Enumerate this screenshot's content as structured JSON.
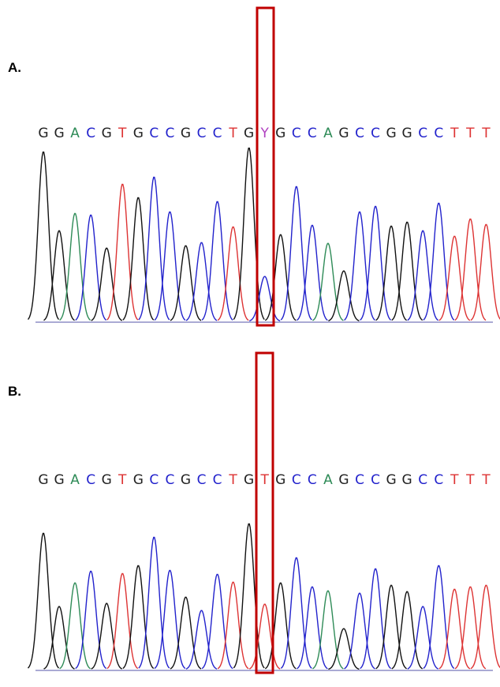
{
  "panels": [
    {
      "label": "A.",
      "sequence": [
        "G",
        "G",
        "A",
        "C",
        "G",
        "T",
        "G",
        "C",
        "C",
        "G",
        "C",
        "C",
        "T",
        "G",
        "Y",
        "G",
        "C",
        "C",
        "A",
        "G",
        "C",
        "C",
        "G",
        "G",
        "C",
        "C",
        "T",
        "T",
        "T"
      ],
      "peaks": [
        215,
        115,
        137,
        135,
        93,
        174,
        157,
        183,
        139,
        96,
        100,
        152,
        120,
        220,
        57,
        110,
        171,
        122,
        99,
        64,
        139,
        146,
        121,
        126,
        115,
        150,
        108,
        130,
        123
      ],
      "peak_colors": [
        "#111111",
        "#111111",
        "#2e8b57",
        "#2222cc",
        "#111111",
        "#dd3333",
        "#111111",
        "#2222cc",
        "#2222cc",
        "#111111",
        "#2222cc",
        "#2222cc",
        "#dd3333",
        "#111111",
        "#2222cc",
        "#111111",
        "#2222cc",
        "#2222cc",
        "#2e8b57",
        "#111111",
        "#2222cc",
        "#2222cc",
        "#111111",
        "#111111",
        "#2222cc",
        "#2222cc",
        "#dd3333",
        "#dd3333",
        "#dd3333"
      ]
    },
    {
      "label": "B.",
      "sequence": [
        "G",
        "G",
        "A",
        "C",
        "G",
        "T",
        "G",
        "C",
        "C",
        "G",
        "C",
        "C",
        "T",
        "G",
        "T",
        "G",
        "C",
        "C",
        "A",
        "G",
        "C",
        "C",
        "G",
        "G",
        "C",
        "C",
        "T",
        "T",
        "T"
      ],
      "peaks": [
        173,
        80,
        110,
        125,
        84,
        122,
        132,
        168,
        126,
        92,
        75,
        121,
        111,
        185,
        83,
        110,
        142,
        105,
        100,
        52,
        97,
        128,
        107,
        99,
        80,
        132,
        102,
        105,
        107
      ],
      "peak_colors": [
        "#111111",
        "#111111",
        "#2e8b57",
        "#2222cc",
        "#111111",
        "#dd3333",
        "#111111",
        "#2222cc",
        "#2222cc",
        "#111111",
        "#2222cc",
        "#2222cc",
        "#dd3333",
        "#111111",
        "#dd3333",
        "#111111",
        "#2222cc",
        "#2222cc",
        "#2e8b57",
        "#111111",
        "#2222cc",
        "#2222cc",
        "#111111",
        "#111111",
        "#2222cc",
        "#2222cc",
        "#dd3333",
        "#dd3333",
        "#dd3333"
      ]
    }
  ],
  "base_colors": {
    "G": "#222222",
    "A": "#2e8b57",
    "C": "#2222cc",
    "T": "#dd3333",
    "Y": "#b040c0"
  }
}
